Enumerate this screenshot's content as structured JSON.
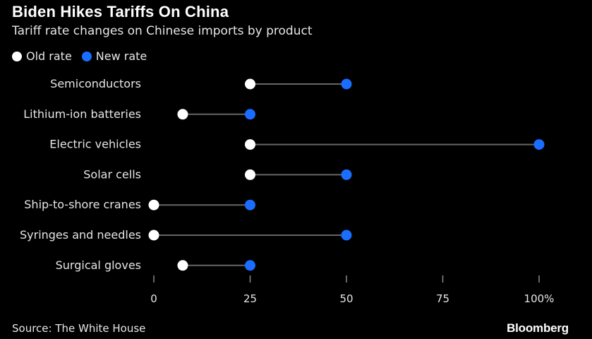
{
  "title": "Biden Hikes Tariffs On China",
  "subtitle": "Tariff rate changes on Chinese imports by product",
  "source": "Source: The White House",
  "brand": "Bloomberg",
  "colors": {
    "old": "#ffffff",
    "new": "#1a6dff",
    "connector": "#666666",
    "background": "#000000"
  },
  "chart_data": {
    "type": "dumbbell",
    "legend": {
      "old": "Old rate",
      "new": "New rate",
      "placement": "top-left"
    },
    "categories": [
      "Semiconductors",
      "Lithium-ion batteries",
      "Electric vehicles",
      "Solar cells",
      "Ship-to-shore cranes",
      "Syringes and needles",
      "Surgical gloves"
    ],
    "series": [
      {
        "name": "Old rate",
        "values": [
          25,
          7.5,
          25,
          25,
          0,
          0,
          7.5
        ]
      },
      {
        "name": "New rate",
        "values": [
          50,
          25,
          100,
          50,
          25,
          50,
          25
        ]
      }
    ],
    "xlim": [
      0,
      100
    ],
    "xticks": [
      0,
      25,
      50,
      75,
      100
    ],
    "xtick_labels": [
      "0",
      "25",
      "50",
      "75",
      "100%"
    ],
    "grid": false
  }
}
